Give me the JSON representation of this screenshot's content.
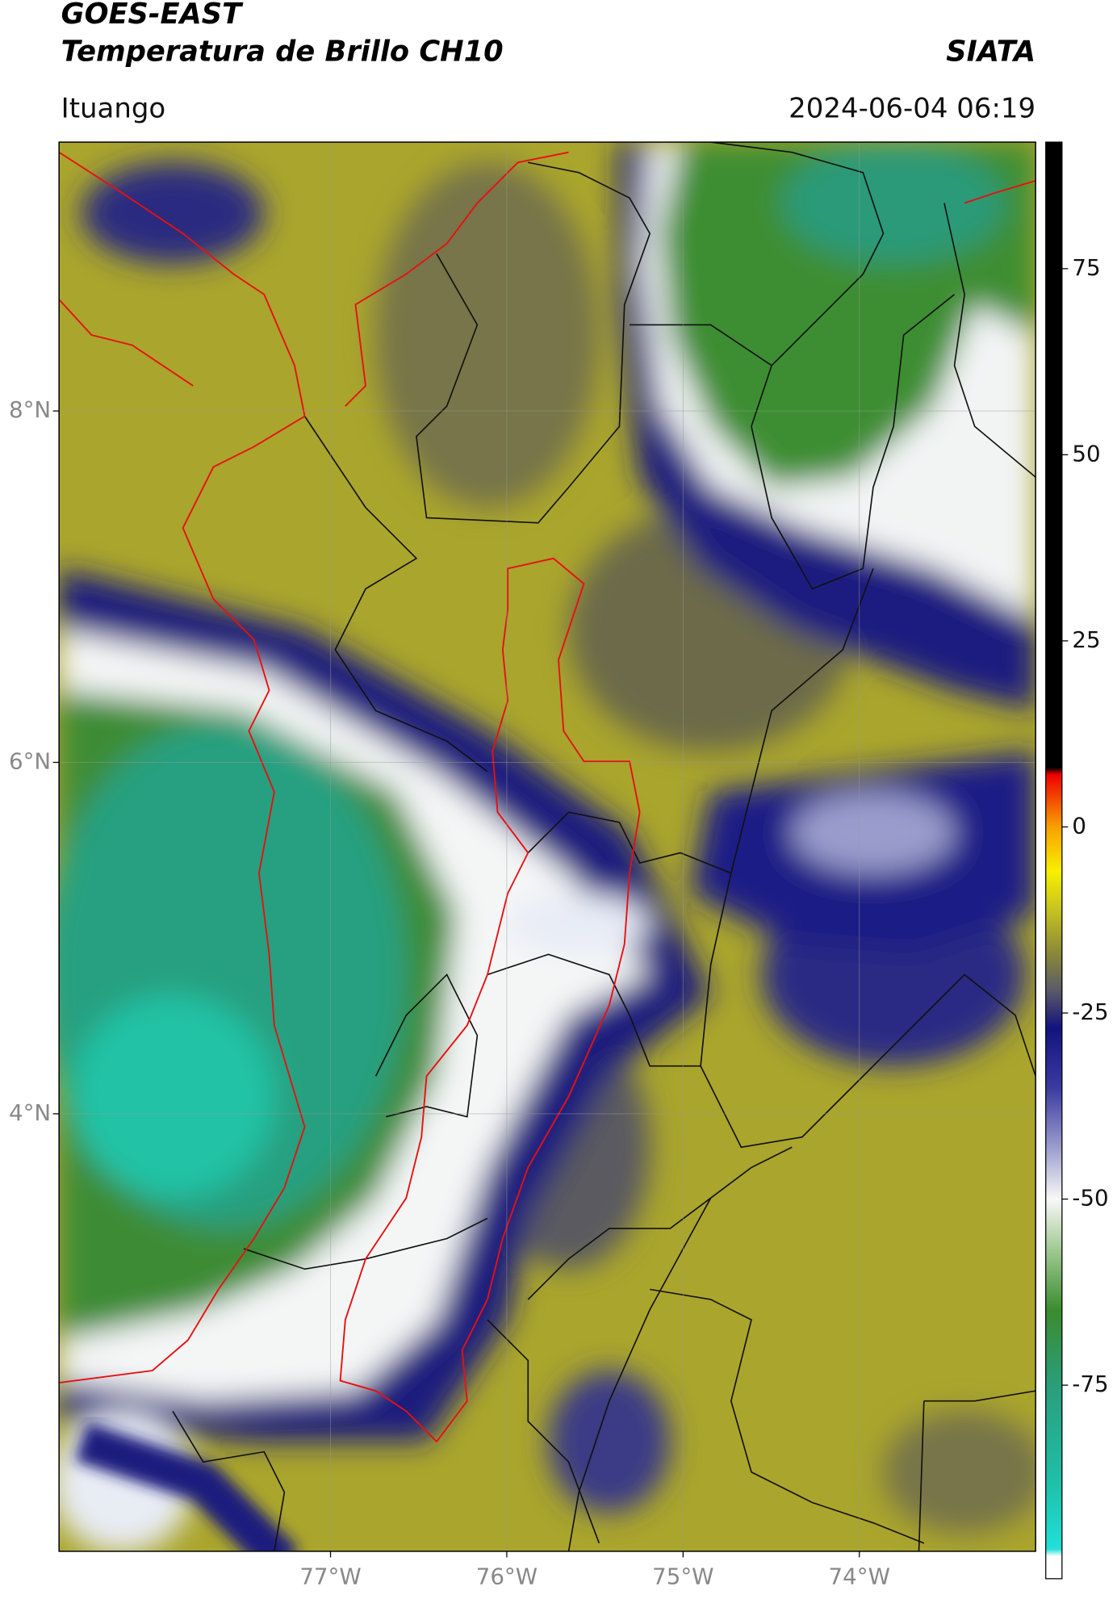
{
  "chart_data": {
    "type": "map",
    "title": "GOES-EAST",
    "subtitle": "Temperatura de Brillo CH10",
    "source": "SIATA",
    "location": "Ituango",
    "datetime": "2024-06-04 06:19",
    "xlim": [
      -78.54,
      -73.0
    ],
    "ylim": [
      1.51,
      9.53
    ],
    "xticks": [
      {
        "value": -77,
        "label": "77°W"
      },
      {
        "value": -76,
        "label": "76°W"
      },
      {
        "value": -75,
        "label": "75°W"
      },
      {
        "value": -74,
        "label": "74°W"
      }
    ],
    "yticks": [
      {
        "value": 8,
        "label": "8°N"
      },
      {
        "value": 6,
        "label": "6°N"
      },
      {
        "value": 4,
        "label": "4°N"
      }
    ],
    "grid": true,
    "colorbar": {
      "lim": [
        -101,
        92
      ],
      "ticks": [
        75,
        50,
        25,
        0,
        -25,
        -50,
        -75
      ],
      "colorscale": [
        {
          "value": -101,
          "color": "#ffffff"
        },
        {
          "value": -98,
          "color": "#ffffff"
        },
        {
          "value": -97,
          "color": "#20e0d8"
        },
        {
          "value": -88,
          "color": "#1fbfa8"
        },
        {
          "value": -75,
          "color": "#2a9e7a"
        },
        {
          "value": -65,
          "color": "#3a8c2e"
        },
        {
          "value": -57,
          "color": "#9ec890"
        },
        {
          "value": -50,
          "color": "#f8f8f8"
        },
        {
          "value": -43,
          "color": "#9a9ccc"
        },
        {
          "value": -35,
          "color": "#3a3aa0"
        },
        {
          "value": -27,
          "color": "#13137e"
        },
        {
          "value": -22,
          "color": "#5a5a68"
        },
        {
          "value": -17,
          "color": "#8a8838"
        },
        {
          "value": -11,
          "color": "#c8c420"
        },
        {
          "value": -6,
          "color": "#f8f000"
        },
        {
          "value": 0,
          "color": "#f8a000"
        },
        {
          "value": 7,
          "color": "#f00000"
        },
        {
          "value": 8,
          "color": "#000000"
        },
        {
          "value": 92,
          "color": "#000000"
        }
      ]
    }
  }
}
